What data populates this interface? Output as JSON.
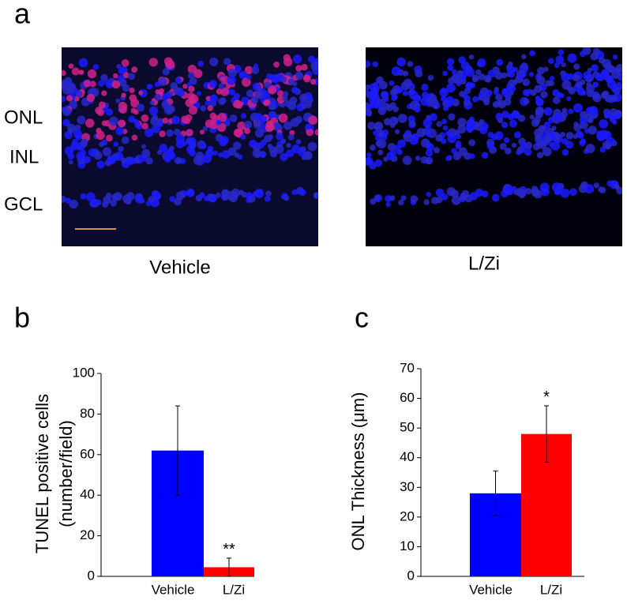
{
  "figure": {
    "panel_label": "a",
    "row_labels": [
      "ONL",
      "INL",
      "GCL"
    ],
    "captions": [
      "Vehicle",
      "L/Zi"
    ]
  },
  "chart_data": [
    {
      "type": "bar",
      "panel_label": "b",
      "ylabel": [
        "TUNEL positive cells",
        "(number/field)"
      ],
      "categories": [
        "Vehicle",
        "L/Zi"
      ],
      "values": [
        62,
        4.5
      ],
      "errors": [
        22,
        4.5
      ],
      "colors": [
        "#0000ff",
        "#ff0000"
      ],
      "significance": [
        null,
        "**"
      ],
      "ylim": [
        0,
        100
      ],
      "yticks": [
        0,
        20,
        40,
        60,
        80,
        100
      ]
    },
    {
      "type": "bar",
      "panel_label": "c",
      "ylabel": [
        "ONL Thickness (μm)"
      ],
      "categories": [
        "Vehicle",
        "L/Zi"
      ],
      "values": [
        28,
        48
      ],
      "errors": [
        7.5,
        9.5
      ],
      "colors": [
        "#0000ff",
        "#ff0000"
      ],
      "significance": [
        null,
        "*"
      ],
      "ylim": [
        0,
        70
      ],
      "yticks": [
        0,
        10,
        20,
        30,
        40,
        50,
        60,
        70
      ]
    }
  ]
}
